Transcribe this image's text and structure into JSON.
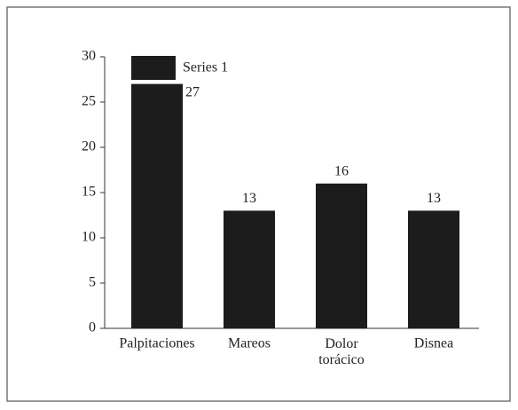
{
  "chart_data": {
    "type": "bar",
    "categories": [
      "Palpitaciones",
      "Mareos",
      "Dolor torácico",
      "Disnea"
    ],
    "series": [
      {
        "name": "Series 1",
        "color": "#1c1c1c",
        "values": [
          27,
          13,
          16,
          13
        ]
      }
    ],
    "ylim": [
      0,
      30
    ],
    "yticks": [
      0,
      5,
      10,
      15,
      20,
      25,
      30
    ],
    "legend": "top-left"
  }
}
